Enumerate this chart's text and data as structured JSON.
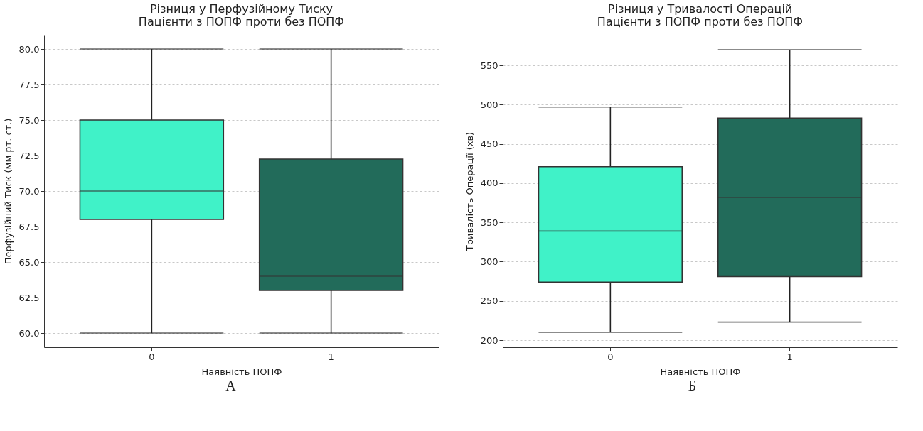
{
  "chart_data": [
    {
      "type": "box",
      "title": "Різниця у Перфузійному Тиску\nПацієнти з ПОПФ проти без ПОПФ",
      "xlabel": "Наявність ПОПФ",
      "ylabel": "Перфузійний Тиск (мм рт. ст.)",
      "categories": [
        "0",
        "1"
      ],
      "colors": [
        "#40f2c8",
        "#226b5a"
      ],
      "boxes": [
        {
          "low": 60,
          "q1": 68,
          "median": 70,
          "q3": 75,
          "high": 80
        },
        {
          "low": 60,
          "q1": 63,
          "median": 64,
          "q3": 72.25,
          "high": 80
        }
      ],
      "ylim": [
        59,
        81
      ],
      "yticks": [
        {
          "value": 60,
          "label": "60.0"
        },
        {
          "value": 62.5,
          "label": "62.5"
        },
        {
          "value": 65,
          "label": "65.0"
        },
        {
          "value": 67.5,
          "label": "67.5"
        },
        {
          "value": 70,
          "label": "70.0"
        },
        {
          "value": 72.5,
          "label": "72.5"
        },
        {
          "value": 75,
          "label": "75.0"
        },
        {
          "value": 77.5,
          "label": "77.5"
        },
        {
          "value": 80,
          "label": "80.0"
        }
      ],
      "grid": "y",
      "annotations": [
        "А"
      ]
    },
    {
      "type": "box",
      "title": "Різниця у Тривалості Операцій\nПацієнти з ПОПФ проти без ПОПФ",
      "xlabel": "Наявність ПОПФ",
      "ylabel": "Тривалість Операції (хв)",
      "categories": [
        "0",
        "1"
      ],
      "colors": [
        "#40f2c8",
        "#226b5a"
      ],
      "boxes": [
        {
          "low": 210,
          "q1": 274,
          "median": 339,
          "q3": 421,
          "high": 497
        },
        {
          "low": 223,
          "q1": 281,
          "median": 382,
          "q3": 483,
          "high": 570
        }
      ],
      "ylim": [
        191,
        589
      ],
      "yticks": [
        200,
        250,
        300,
        350,
        400,
        450,
        500,
        550
      ],
      "grid": "y",
      "annotations": [
        "Б"
      ]
    }
  ]
}
